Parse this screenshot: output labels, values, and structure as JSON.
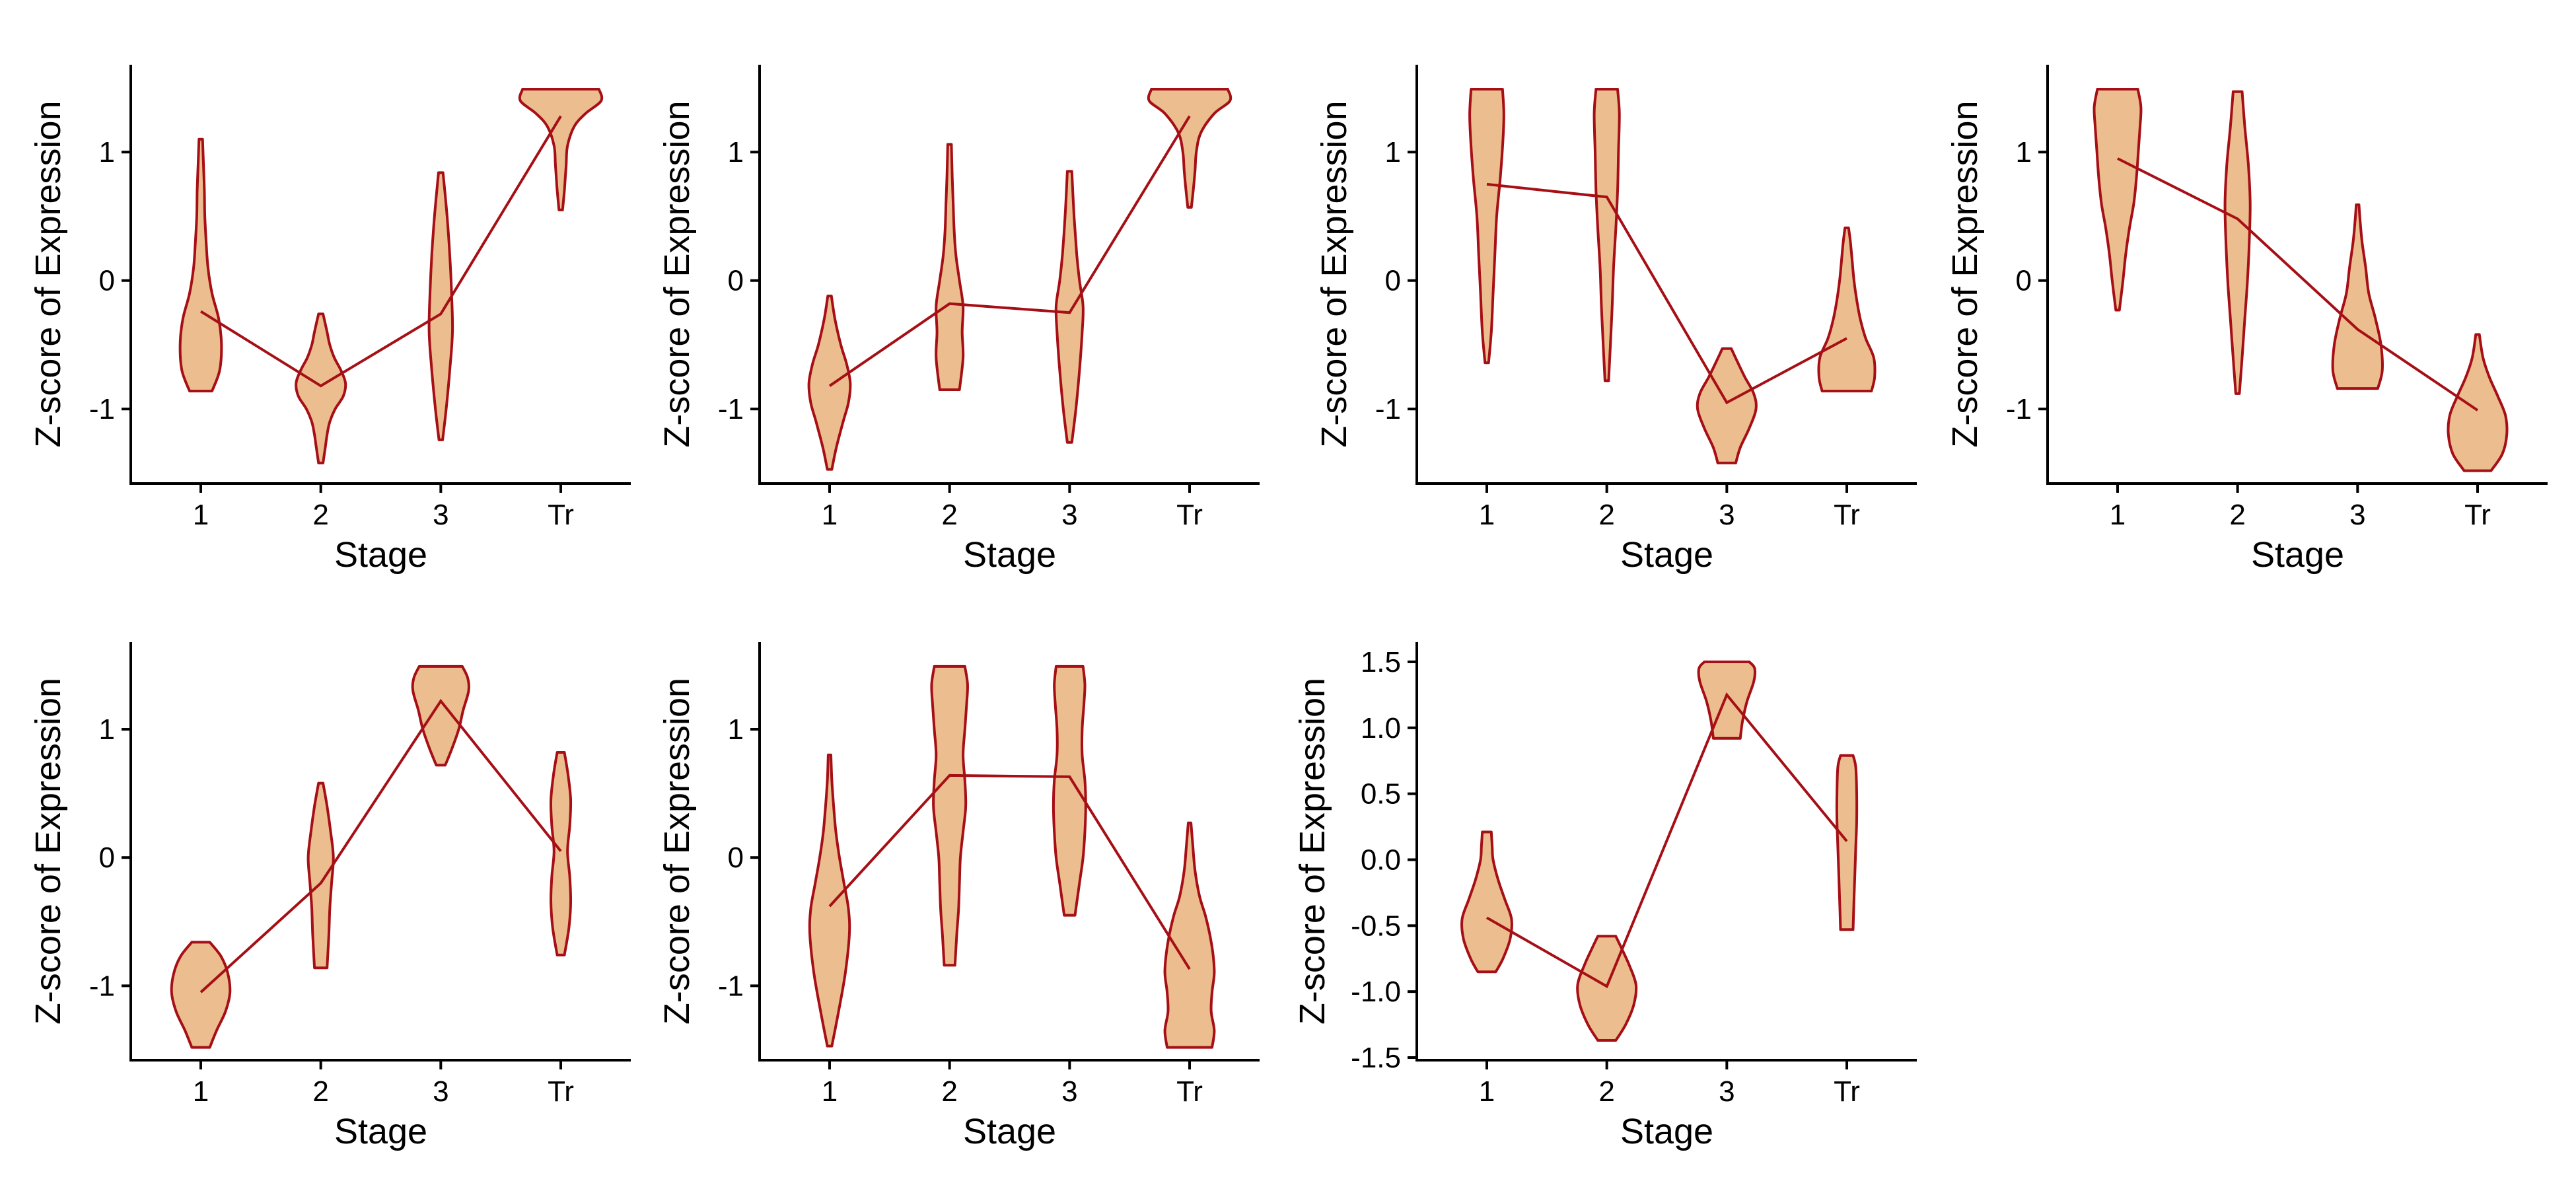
{
  "figure": {
    "panels": 7
  },
  "style": {
    "violin_fill": "#EBBD8F",
    "violin_stroke": "#A50F15",
    "line_color": "#A50F15",
    "axis_color": "#000000",
    "background": "#ffffff"
  },
  "chart_data": [
    {
      "type": "violin",
      "xlabel": "Stage",
      "ylabel": "Z-score of Expression",
      "categories": [
        "1",
        "2",
        "3",
        "Tr"
      ],
      "ylim": [
        -1.58,
        1.68
      ],
      "yticks": [
        -1,
        0,
        1
      ],
      "ytick_labels": [
        "-1",
        "0",
        "1"
      ],
      "grid": false,
      "legend": "none",
      "line_values": [
        -0.24,
        -0.82,
        -0.26,
        1.28
      ],
      "violins": [
        {
          "y": [
            -0.86,
            -0.7,
            -0.5,
            -0.3,
            -0.1,
            0.1,
            0.3,
            0.5,
            0.7,
            0.9,
            1.1
          ],
          "w": [
            0.25,
            0.42,
            0.46,
            0.4,
            0.25,
            0.16,
            0.12,
            0.09,
            0.08,
            0.06,
            0.04
          ]
        },
        {
          "y": [
            -1.42,
            -1.3,
            -1.2,
            -1.1,
            -1.0,
            -0.9,
            -0.8,
            -0.7,
            -0.6,
            -0.5,
            -0.4,
            -0.26
          ],
          "w": [
            0.05,
            0.1,
            0.14,
            0.2,
            0.32,
            0.5,
            0.55,
            0.45,
            0.3,
            0.2,
            0.14,
            0.05
          ]
        },
        {
          "y": [
            -1.24,
            -1.0,
            -0.7,
            -0.4,
            -0.1,
            0.2,
            0.5,
            0.84
          ],
          "w": [
            0.04,
            0.12,
            0.2,
            0.26,
            0.24,
            0.2,
            0.14,
            0.05
          ]
        },
        {
          "y": [
            0.55,
            0.7,
            0.8,
            0.9,
            1.05,
            1.2,
            1.3,
            1.4,
            1.49
          ],
          "w": [
            0.04,
            0.08,
            0.1,
            0.12,
            0.15,
            0.3,
            0.55,
            0.9,
            0.85
          ]
        }
      ]
    },
    {
      "type": "violin",
      "xlabel": "Stage",
      "ylabel": "Z-score of Expression",
      "categories": [
        "1",
        "2",
        "3",
        "Tr"
      ],
      "ylim": [
        -1.58,
        1.68
      ],
      "yticks": [
        -1,
        0,
        1
      ],
      "ytick_labels": [
        "-1",
        "0",
        "1"
      ],
      "grid": false,
      "legend": "none",
      "line_values": [
        -0.82,
        -0.18,
        -0.25,
        1.28
      ],
      "violins": [
        {
          "y": [
            -1.47,
            -1.3,
            -1.1,
            -0.95,
            -0.8,
            -0.65,
            -0.5,
            -0.3,
            -0.12
          ],
          "w": [
            0.05,
            0.15,
            0.3,
            0.42,
            0.46,
            0.38,
            0.25,
            0.12,
            0.04
          ]
        },
        {
          "y": [
            -0.85,
            -0.6,
            -0.4,
            -0.2,
            0.0,
            0.2,
            0.4,
            0.6,
            0.8,
            1.06
          ],
          "w": [
            0.22,
            0.3,
            0.28,
            0.3,
            0.22,
            0.14,
            0.1,
            0.08,
            0.06,
            0.04
          ]
        },
        {
          "y": [
            -1.26,
            -1.0,
            -0.7,
            -0.4,
            -0.2,
            0.0,
            0.2,
            0.5,
            0.85
          ],
          "w": [
            0.05,
            0.14,
            0.22,
            0.28,
            0.3,
            0.22,
            0.16,
            0.1,
            0.05
          ]
        },
        {
          "y": [
            0.57,
            0.7,
            0.85,
            1.0,
            1.15,
            1.3,
            1.4,
            1.49
          ],
          "w": [
            0.04,
            0.08,
            0.12,
            0.15,
            0.25,
            0.55,
            0.9,
            0.85
          ]
        }
      ]
    },
    {
      "type": "violin",
      "xlabel": "Stage",
      "ylabel": "Z-score of Expression",
      "categories": [
        "1",
        "2",
        "3",
        "Tr"
      ],
      "ylim": [
        -1.58,
        1.68
      ],
      "yticks": [
        -1,
        0,
        1
      ],
      "ytick_labels": [
        "-1",
        "0",
        "1"
      ],
      "grid": false,
      "legend": "none",
      "line_values": [
        0.75,
        0.65,
        -0.95,
        -0.45
      ],
      "violins": [
        {
          "y": [
            -0.64,
            -0.4,
            -0.1,
            0.2,
            0.5,
            0.8,
            1.1,
            1.3,
            1.49
          ],
          "w": [
            0.04,
            0.1,
            0.14,
            0.18,
            0.22,
            0.3,
            0.36,
            0.38,
            0.35
          ]
        },
        {
          "y": [
            -0.78,
            -0.5,
            -0.2,
            0.1,
            0.4,
            0.7,
            1.0,
            1.3,
            1.49
          ],
          "w": [
            0.04,
            0.08,
            0.12,
            0.15,
            0.2,
            0.24,
            0.26,
            0.28,
            0.24
          ]
        },
        {
          "y": [
            -1.42,
            -1.3,
            -1.15,
            -1.0,
            -0.88,
            -0.75,
            -0.62,
            -0.53
          ],
          "w": [
            0.2,
            0.3,
            0.5,
            0.65,
            0.6,
            0.4,
            0.22,
            0.1
          ]
        },
        {
          "y": [
            -0.86,
            -0.75,
            -0.6,
            -0.45,
            -0.3,
            -0.15,
            0.0,
            0.15,
            0.3,
            0.41
          ],
          "w": [
            0.55,
            0.62,
            0.6,
            0.42,
            0.3,
            0.22,
            0.16,
            0.12,
            0.08,
            0.04
          ]
        }
      ]
    },
    {
      "type": "violin",
      "xlabel": "Stage",
      "ylabel": "Z-score of Expression",
      "categories": [
        "1",
        "2",
        "3",
        "Tr"
      ],
      "ylim": [
        -1.58,
        1.68
      ],
      "yticks": [
        -1,
        0,
        1
      ],
      "ytick_labels": [
        "-1",
        "0",
        "1"
      ],
      "grid": false,
      "legend": "none",
      "line_values": [
        0.95,
        0.48,
        -0.38,
        -1.01
      ],
      "violins": [
        {
          "y": [
            -0.23,
            0.0,
            0.2,
            0.4,
            0.6,
            0.8,
            1.0,
            1.2,
            1.35,
            1.49
          ],
          "w": [
            0.04,
            0.12,
            0.18,
            0.26,
            0.36,
            0.42,
            0.46,
            0.5,
            0.52,
            0.45
          ]
        },
        {
          "y": [
            -0.88,
            -0.6,
            -0.3,
            0.0,
            0.3,
            0.6,
            0.9,
            1.2,
            1.47
          ],
          "w": [
            0.04,
            0.1,
            0.16,
            0.22,
            0.26,
            0.28,
            0.24,
            0.16,
            0.1
          ]
        },
        {
          "y": [
            -0.84,
            -0.7,
            -0.5,
            -0.3,
            -0.1,
            0.1,
            0.3,
            0.45,
            0.59
          ],
          "w": [
            0.45,
            0.55,
            0.52,
            0.4,
            0.25,
            0.18,
            0.1,
            0.06,
            0.03
          ]
        },
        {
          "y": [
            -1.48,
            -1.35,
            -1.2,
            -1.05,
            -0.9,
            -0.75,
            -0.6,
            -0.42
          ],
          "w": [
            0.3,
            0.55,
            0.65,
            0.62,
            0.45,
            0.26,
            0.12,
            0.04
          ]
        }
      ]
    },
    {
      "type": "violin",
      "xlabel": "Stage",
      "ylabel": "Z-score of Expression",
      "categories": [
        "1",
        "2",
        "3",
        "Tr"
      ],
      "ylim": [
        -1.58,
        1.68
      ],
      "yticks": [
        -1,
        0,
        1
      ],
      "ytick_labels": [
        "-1",
        "0",
        "1"
      ],
      "grid": false,
      "legend": "none",
      "line_values": [
        -1.05,
        -0.2,
        1.22,
        0.05
      ],
      "violins": [
        {
          "y": [
            -1.48,
            -1.35,
            -1.2,
            -1.05,
            -0.9,
            -0.77,
            -0.66
          ],
          "w": [
            0.2,
            0.35,
            0.55,
            0.65,
            0.6,
            0.45,
            0.2
          ]
        },
        {
          "y": [
            -0.86,
            -0.6,
            -0.4,
            -0.2,
            0.0,
            0.2,
            0.4,
            0.58
          ],
          "w": [
            0.14,
            0.18,
            0.2,
            0.24,
            0.28,
            0.22,
            0.14,
            0.05
          ]
        },
        {
          "y": [
            0.72,
            0.85,
            1.0,
            1.15,
            1.3,
            1.4,
            1.49
          ],
          "w": [
            0.1,
            0.25,
            0.4,
            0.5,
            0.62,
            0.6,
            0.48
          ]
        },
        {
          "y": [
            -0.76,
            -0.55,
            -0.35,
            -0.15,
            0.05,
            0.25,
            0.45,
            0.65,
            0.82
          ],
          "w": [
            0.08,
            0.18,
            0.22,
            0.2,
            0.15,
            0.2,
            0.22,
            0.16,
            0.08
          ]
        }
      ]
    },
    {
      "type": "violin",
      "xlabel": "Stage",
      "ylabel": "Z-score of Expression",
      "categories": [
        "1",
        "2",
        "3",
        "Tr"
      ],
      "ylim": [
        -1.58,
        1.68
      ],
      "yticks": [
        -1,
        0,
        1
      ],
      "ytick_labels": [
        "-1",
        "0",
        "1"
      ],
      "grid": false,
      "legend": "none",
      "line_values": [
        -0.38,
        0.64,
        0.63,
        -0.87
      ],
      "violins": [
        {
          "y": [
            -1.47,
            -1.2,
            -0.9,
            -0.6,
            -0.4,
            -0.2,
            0.0,
            0.2,
            0.4,
            0.6,
            0.8
          ],
          "w": [
            0.05,
            0.2,
            0.35,
            0.44,
            0.42,
            0.32,
            0.22,
            0.14,
            0.09,
            0.05,
            0.03
          ]
        },
        {
          "y": [
            -0.84,
            -0.6,
            -0.4,
            -0.2,
            0.0,
            0.2,
            0.4,
            0.6,
            0.8,
            1.0,
            1.2,
            1.35,
            1.49
          ],
          "w": [
            0.12,
            0.16,
            0.2,
            0.22,
            0.24,
            0.3,
            0.36,
            0.34,
            0.3,
            0.34,
            0.38,
            0.4,
            0.34
          ]
        },
        {
          "y": [
            -0.45,
            -0.2,
            0.0,
            0.2,
            0.4,
            0.6,
            0.8,
            1.0,
            1.2,
            1.35,
            1.49
          ],
          "w": [
            0.12,
            0.22,
            0.3,
            0.34,
            0.36,
            0.34,
            0.28,
            0.28,
            0.32,
            0.34,
            0.3
          ]
        },
        {
          "y": [
            -1.48,
            -1.35,
            -1.2,
            -1.05,
            -0.9,
            -0.75,
            -0.6,
            -0.45,
            -0.3,
            -0.1,
            0.1,
            0.27
          ],
          "w": [
            0.5,
            0.55,
            0.48,
            0.5,
            0.55,
            0.52,
            0.45,
            0.35,
            0.22,
            0.12,
            0.07,
            0.03
          ]
        }
      ]
    },
    {
      "type": "violin",
      "xlabel": "Stage",
      "ylabel": "Z-score of Expression",
      "categories": [
        "1",
        "2",
        "3",
        "Tr"
      ],
      "ylim": [
        -1.52,
        1.65
      ],
      "yticks": [
        -1.5,
        -1.0,
        -0.5,
        0.0,
        0.5,
        1.0,
        1.5
      ],
      "ytick_labels": [
        "-1.5",
        "-1.0",
        "-0.5",
        "0.0",
        "0.5",
        "1.0",
        "1.5"
      ],
      "grid": false,
      "legend": "none",
      "line_values": [
        -0.44,
        -0.96,
        1.25,
        0.14
      ],
      "violins": [
        {
          "y": [
            -0.85,
            -0.75,
            -0.6,
            -0.45,
            -0.3,
            -0.15,
            0.0,
            0.1,
            0.21
          ],
          "w": [
            0.2,
            0.36,
            0.52,
            0.55,
            0.4,
            0.25,
            0.14,
            0.12,
            0.1
          ]
        },
        {
          "y": [
            -1.37,
            -1.25,
            -1.1,
            -0.95,
            -0.8,
            -0.68,
            -0.58
          ],
          "w": [
            0.2,
            0.42,
            0.6,
            0.65,
            0.5,
            0.34,
            0.2
          ]
        },
        {
          "y": [
            0.92,
            1.05,
            1.2,
            1.35,
            1.45,
            1.5
          ],
          "w": [
            0.3,
            0.35,
            0.45,
            0.6,
            0.62,
            0.5
          ]
        },
        {
          "y": [
            -0.53,
            -0.3,
            -0.1,
            0.1,
            0.3,
            0.5,
            0.7,
            0.79
          ],
          "w": [
            0.14,
            0.16,
            0.18,
            0.2,
            0.22,
            0.22,
            0.2,
            0.14
          ]
        }
      ]
    }
  ]
}
